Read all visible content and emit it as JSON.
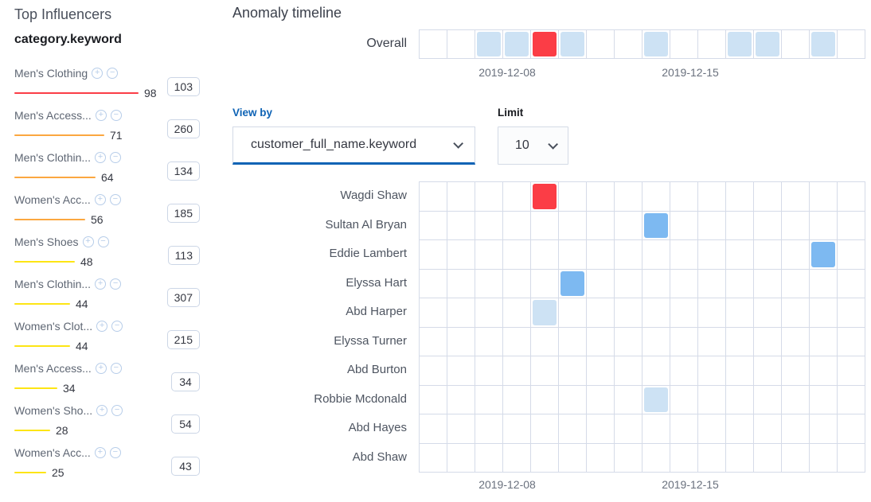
{
  "influencers": {
    "title": "Top Influencers",
    "field": "category.keyword",
    "items": [
      {
        "label": "Men's Clothing",
        "score": 98,
        "count": 103,
        "severity": "critical"
      },
      {
        "label": "Men's Access...",
        "score": 71,
        "count": 260,
        "severity": "major"
      },
      {
        "label": "Men's Clothin...",
        "score": 64,
        "count": 134,
        "severity": "major"
      },
      {
        "label": "Women's Acc...",
        "score": 56,
        "count": 185,
        "severity": "major"
      },
      {
        "label": "Men's Shoes",
        "score": 48,
        "count": 113,
        "severity": "minor"
      },
      {
        "label": "Men's Clothin...",
        "score": 44,
        "count": 307,
        "severity": "minor"
      },
      {
        "label": "Women's Clot...",
        "score": 44,
        "count": 215,
        "severity": "minor"
      },
      {
        "label": "Men's Access...",
        "score": 34,
        "count": 34,
        "severity": "minor"
      },
      {
        "label": "Women's Sho...",
        "score": 28,
        "count": 54,
        "severity": "minor"
      },
      {
        "label": "Women's Acc...",
        "score": 25,
        "count": 43,
        "severity": "minor"
      }
    ]
  },
  "timeline": {
    "title": "Anomaly timeline",
    "overall_label": "Overall",
    "columns": 16,
    "axis_labels": [
      "2019-12-08",
      "2019-12-15"
    ],
    "view_by": {
      "label": "View by",
      "value": "customer_full_name.keyword"
    },
    "limit": {
      "label": "Limit",
      "value": "10"
    },
    "overall_cells": [
      {
        "col": 3,
        "severity": "low"
      },
      {
        "col": 4,
        "severity": "low"
      },
      {
        "col": 5,
        "severity": "critical"
      },
      {
        "col": 6,
        "severity": "low"
      },
      {
        "col": 9,
        "severity": "low"
      },
      {
        "col": 12,
        "severity": "low"
      },
      {
        "col": 13,
        "severity": "low"
      },
      {
        "col": 15,
        "severity": "low"
      }
    ],
    "rows": [
      {
        "label": "Wagdi Shaw",
        "cells": [
          {
            "col": 5,
            "severity": "critical"
          }
        ]
      },
      {
        "label": "Sultan Al Bryan",
        "cells": [
          {
            "col": 9,
            "severity": "warning"
          }
        ]
      },
      {
        "label": "Eddie Lambert",
        "cells": [
          {
            "col": 15,
            "severity": "warning"
          }
        ]
      },
      {
        "label": "Elyssa Hart",
        "cells": [
          {
            "col": 6,
            "severity": "warning"
          }
        ]
      },
      {
        "label": "Abd Harper",
        "cells": [
          {
            "col": 5,
            "severity": "low"
          }
        ]
      },
      {
        "label": "Elyssa Turner",
        "cells": []
      },
      {
        "label": "Abd Burton",
        "cells": []
      },
      {
        "label": "Robbie Mcdonald",
        "cells": [
          {
            "col": 9,
            "severity": "low"
          }
        ]
      },
      {
        "label": "Abd Hayes",
        "cells": []
      },
      {
        "label": "Abd Shaw",
        "cells": []
      }
    ]
  },
  "colors": {
    "sev_critical": "#fb3d46",
    "sev_major": "#fba740",
    "sev_minor": "#fde514",
    "sev_warning": "#7db9f1",
    "sev_low": "#cde2f4",
    "accent": "#0e63b5"
  }
}
